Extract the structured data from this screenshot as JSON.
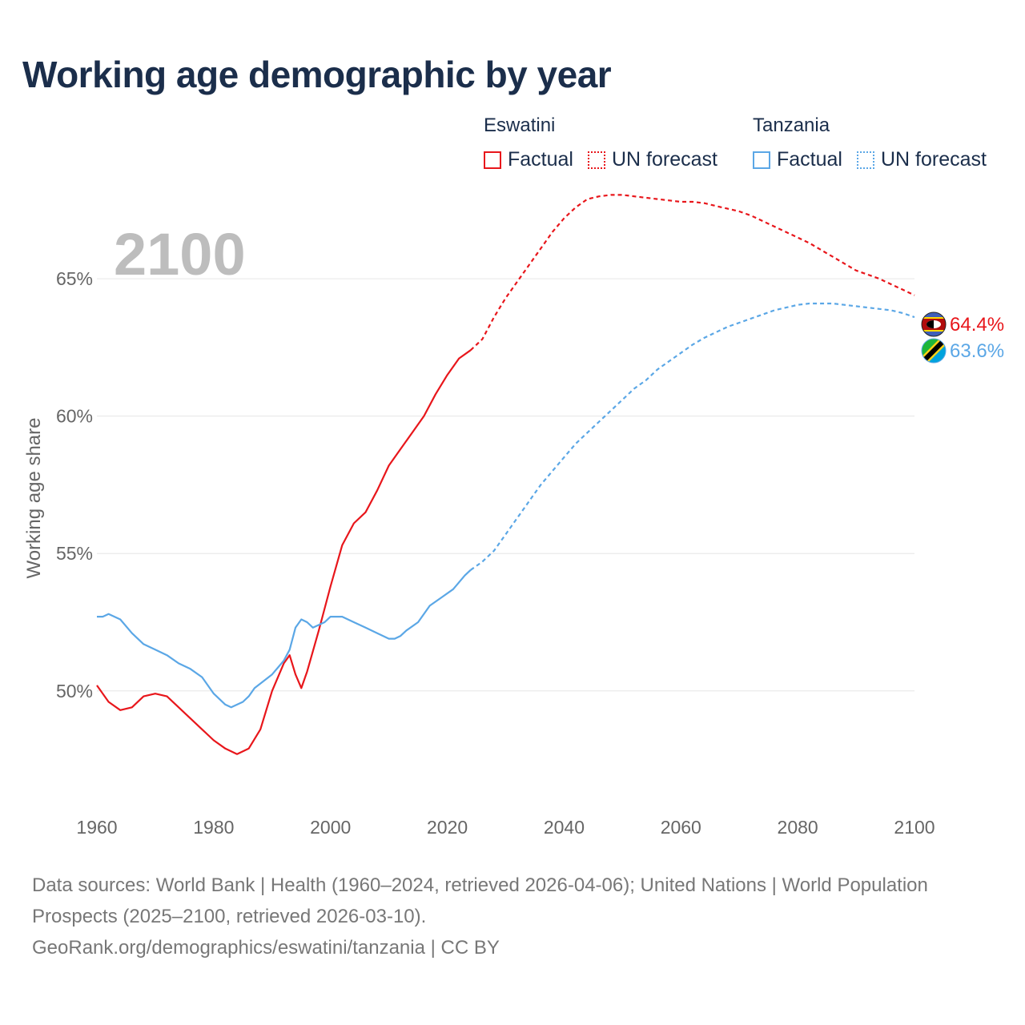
{
  "title": "Working age demographic by year",
  "legend": {
    "factual_label": "Factual",
    "forecast_label": "UN forecast",
    "groups": [
      {
        "country": "Eswatini",
        "color": "#e8161b"
      },
      {
        "country": "Tanzania",
        "color": "#5ba7e6"
      }
    ]
  },
  "footer": {
    "sources": "Data sources: World Bank | Health (1960–2024, retrieved 2026-04-06); United Nations | World Population Prospects (2025–2100, retrieved 2026-03-10).",
    "link": "GeoRank.org/demographics/eswatini/tanzania | CC BY"
  },
  "chart_data": {
    "type": "line",
    "title": "Working age demographic by year",
    "year_overlay": "2100",
    "xlabel": "",
    "ylabel": "Working age share",
    "xlim": [
      1960,
      2100
    ],
    "ylim": [
      46,
      68.5
    ],
    "x_ticks": [
      1960,
      1980,
      2000,
      2020,
      2040,
      2060,
      2080,
      2100
    ],
    "x_tick_labels": [
      "1960",
      "1980",
      "2000",
      "2020",
      "2040",
      "2060",
      "2080",
      "2100"
    ],
    "y_ticks": [
      50,
      55,
      60,
      65
    ],
    "y_tick_labels": [
      "50%",
      "55%",
      "60%",
      "65%"
    ],
    "grid": true,
    "factual_end_year": 2024,
    "series": [
      {
        "name": "Eswatini",
        "color": "#e8161b",
        "end_label": "64.4%",
        "flag": "eswatini-flag-icon",
        "points": [
          [
            1960,
            50.2
          ],
          [
            1962,
            49.6
          ],
          [
            1964,
            49.3
          ],
          [
            1966,
            49.4
          ],
          [
            1968,
            49.8
          ],
          [
            1970,
            49.9
          ],
          [
            1972,
            49.8
          ],
          [
            1974,
            49.4
          ],
          [
            1976,
            49.0
          ],
          [
            1978,
            48.6
          ],
          [
            1980,
            48.2
          ],
          [
            1982,
            47.9
          ],
          [
            1984,
            47.7
          ],
          [
            1986,
            47.9
          ],
          [
            1988,
            48.6
          ],
          [
            1990,
            50.0
          ],
          [
            1992,
            51.0
          ],
          [
            1993,
            51.3
          ],
          [
            1994,
            50.6
          ],
          [
            1995,
            50.1
          ],
          [
            1996,
            50.7
          ],
          [
            1998,
            52.2
          ],
          [
            2000,
            53.8
          ],
          [
            2002,
            55.3
          ],
          [
            2004,
            56.1
          ],
          [
            2006,
            56.5
          ],
          [
            2008,
            57.3
          ],
          [
            2010,
            58.2
          ],
          [
            2012,
            58.8
          ],
          [
            2014,
            59.4
          ],
          [
            2016,
            60.0
          ],
          [
            2018,
            60.8
          ],
          [
            2020,
            61.5
          ],
          [
            2022,
            62.1
          ],
          [
            2024,
            62.4
          ],
          [
            2026,
            62.8
          ],
          [
            2028,
            63.6
          ],
          [
            2030,
            64.3
          ],
          [
            2032,
            64.9
          ],
          [
            2034,
            65.5
          ],
          [
            2036,
            66.1
          ],
          [
            2038,
            66.7
          ],
          [
            2040,
            67.2
          ],
          [
            2042,
            67.6
          ],
          [
            2044,
            67.9
          ],
          [
            2046,
            68.0
          ],
          [
            2048,
            68.05
          ],
          [
            2050,
            68.05
          ],
          [
            2052,
            68.0
          ],
          [
            2054,
            67.95
          ],
          [
            2056,
            67.9
          ],
          [
            2058,
            67.85
          ],
          [
            2060,
            67.8
          ],
          [
            2062,
            67.8
          ],
          [
            2064,
            67.75
          ],
          [
            2066,
            67.65
          ],
          [
            2068,
            67.55
          ],
          [
            2070,
            67.45
          ],
          [
            2072,
            67.3
          ],
          [
            2074,
            67.1
          ],
          [
            2076,
            66.9
          ],
          [
            2078,
            66.7
          ],
          [
            2080,
            66.5
          ],
          [
            2082,
            66.3
          ],
          [
            2084,
            66.05
          ],
          [
            2086,
            65.8
          ],
          [
            2088,
            65.55
          ],
          [
            2090,
            65.3
          ],
          [
            2092,
            65.15
          ],
          [
            2094,
            65.0
          ],
          [
            2096,
            64.8
          ],
          [
            2098,
            64.6
          ],
          [
            2100,
            64.4
          ]
        ]
      },
      {
        "name": "Tanzania",
        "color": "#5ba7e6",
        "end_label": "63.6%",
        "flag": "tanzania-flag-icon",
        "points": [
          [
            1960,
            52.7
          ],
          [
            1961,
            52.7
          ],
          [
            1962,
            52.8
          ],
          [
            1964,
            52.6
          ],
          [
            1966,
            52.1
          ],
          [
            1968,
            51.7
          ],
          [
            1970,
            51.5
          ],
          [
            1972,
            51.3
          ],
          [
            1974,
            51.0
          ],
          [
            1976,
            50.8
          ],
          [
            1978,
            50.5
          ],
          [
            1980,
            49.9
          ],
          [
            1982,
            49.5
          ],
          [
            1983,
            49.4
          ],
          [
            1985,
            49.6
          ],
          [
            1986,
            49.8
          ],
          [
            1987,
            50.1
          ],
          [
            1990,
            50.6
          ],
          [
            1992,
            51.1
          ],
          [
            1993,
            51.5
          ],
          [
            1994,
            52.3
          ],
          [
            1995,
            52.6
          ],
          [
            1996,
            52.5
          ],
          [
            1997,
            52.3
          ],
          [
            1998,
            52.4
          ],
          [
            1999,
            52.5
          ],
          [
            2000,
            52.7
          ],
          [
            2002,
            52.7
          ],
          [
            2004,
            52.5
          ],
          [
            2006,
            52.3
          ],
          [
            2008,
            52.1
          ],
          [
            2010,
            51.9
          ],
          [
            2011,
            51.9
          ],
          [
            2012,
            52.0
          ],
          [
            2013,
            52.2
          ],
          [
            2015,
            52.5
          ],
          [
            2017,
            53.1
          ],
          [
            2019,
            53.4
          ],
          [
            2021,
            53.7
          ],
          [
            2023,
            54.2
          ],
          [
            2024,
            54.4
          ],
          [
            2026,
            54.7
          ],
          [
            2028,
            55.1
          ],
          [
            2030,
            55.7
          ],
          [
            2032,
            56.3
          ],
          [
            2034,
            56.9
          ],
          [
            2036,
            57.5
          ],
          [
            2038,
            58.0
          ],
          [
            2040,
            58.5
          ],
          [
            2042,
            59.0
          ],
          [
            2044,
            59.4
          ],
          [
            2046,
            59.8
          ],
          [
            2048,
            60.2
          ],
          [
            2050,
            60.6
          ],
          [
            2052,
            61.0
          ],
          [
            2054,
            61.3
          ],
          [
            2056,
            61.7
          ],
          [
            2058,
            62.0
          ],
          [
            2060,
            62.3
          ],
          [
            2062,
            62.6
          ],
          [
            2064,
            62.85
          ],
          [
            2066,
            63.05
          ],
          [
            2068,
            63.25
          ],
          [
            2070,
            63.4
          ],
          [
            2072,
            63.55
          ],
          [
            2074,
            63.7
          ],
          [
            2076,
            63.85
          ],
          [
            2078,
            63.95
          ],
          [
            2080,
            64.05
          ],
          [
            2082,
            64.1
          ],
          [
            2084,
            64.1
          ],
          [
            2086,
            64.1
          ],
          [
            2088,
            64.05
          ],
          [
            2090,
            64.0
          ],
          [
            2092,
            63.95
          ],
          [
            2094,
            63.9
          ],
          [
            2096,
            63.85
          ],
          [
            2098,
            63.75
          ],
          [
            2100,
            63.6
          ]
        ]
      }
    ]
  }
}
